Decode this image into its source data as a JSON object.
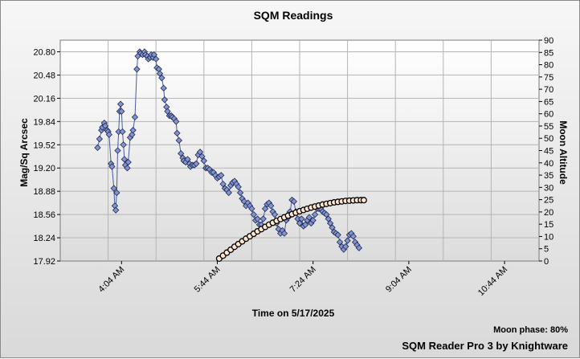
{
  "footer": {
    "moon_phase": "Moon phase: 80%",
    "brand": "SQM Reader Pro 3 by Knightware"
  },
  "chart_data": {
    "type": "scatter",
    "title": "SQM Readings",
    "xlabel": "Time on 5/17/2025",
    "ylabel": "Mag/Sq Arcsec",
    "y2label": "Moon Altitude",
    "x_tick_labels": [
      "4:04 AM",
      "5:44 AM",
      "7:24 AM",
      "9:04 AM",
      "10:44 AM"
    ],
    "x_tick_values_min": [
      244,
      344,
      444,
      544,
      644
    ],
    "x_range_min": [
      180,
      680
    ],
    "x_grid_step_min": 50,
    "ylim": [
      17.92,
      20.96
    ],
    "y_tick_values": [
      17.92,
      18.24,
      18.56,
      18.88,
      19.2,
      19.52,
      19.84,
      20.16,
      20.48,
      20.8
    ],
    "y_tick_labels": [
      "17.92",
      "18.24",
      "18.56",
      "18.88",
      "19.20",
      "19.52",
      "19.84",
      "20.16",
      "20.48",
      "20.80"
    ],
    "y2lim": [
      0,
      90
    ],
    "y2_tick_values": [
      0,
      5,
      10,
      15,
      20,
      25,
      30,
      35,
      40,
      45,
      50,
      55,
      60,
      65,
      70,
      75,
      80,
      85,
      90
    ],
    "grid": true,
    "colors": {
      "sqm_fill": "#8593cf",
      "sqm_edge": "#1c2a55",
      "sqm_line": "#4a5a9a",
      "moon_fill": "#ffe6cf",
      "moon_edge": "#000000",
      "plot_bg_top": "#ffffff",
      "plot_bg_bottom": "#dcdcdc",
      "grid": "#b4b4b4"
    },
    "series": [
      {
        "name": "SQM",
        "marker": "diamond",
        "points": [
          [
            219,
            19.48
          ],
          [
            221,
            19.6
          ],
          [
            223,
            19.72
          ],
          [
            224,
            19.76
          ],
          [
            226,
            19.82
          ],
          [
            227,
            19.78
          ],
          [
            229,
            19.72
          ],
          [
            230,
            19.7
          ],
          [
            231,
            19.66
          ],
          [
            233,
            19.26
          ],
          [
            234,
            19.22
          ],
          [
            236,
            18.92
          ],
          [
            237,
            18.68
          ],
          [
            238,
            18.62
          ],
          [
            239,
            18.86
          ],
          [
            240,
            19.44
          ],
          [
            241,
            19.7
          ],
          [
            242,
            19.98
          ],
          [
            243,
            20.08
          ],
          [
            244,
            19.98
          ],
          [
            245,
            19.7
          ],
          [
            246,
            19.52
          ],
          [
            247,
            19.32
          ],
          [
            248,
            19.24
          ],
          [
            250,
            19.2
          ],
          [
            251,
            19.28
          ],
          [
            253,
            19.62
          ],
          [
            255,
            19.66
          ],
          [
            256,
            19.72
          ],
          [
            258,
            19.9
          ],
          [
            260,
            20.56
          ],
          [
            261,
            20.74
          ],
          [
            263,
            20.8
          ],
          [
            264,
            20.78
          ],
          [
            266,
            20.76
          ],
          [
            268,
            20.8
          ],
          [
            269,
            20.76
          ],
          [
            271,
            20.74
          ],
          [
            272,
            20.7
          ],
          [
            274,
            20.72
          ],
          [
            275,
            20.76
          ],
          [
            277,
            20.72
          ],
          [
            278,
            20.76
          ],
          [
            280,
            20.7
          ],
          [
            281,
            20.58
          ],
          [
            283,
            20.56
          ],
          [
            284,
            20.5
          ],
          [
            286,
            20.44
          ],
          [
            288,
            20.3
          ],
          [
            289,
            20.14
          ],
          [
            291,
            20.04
          ],
          [
            292,
            19.98
          ],
          [
            294,
            19.92
          ],
          [
            296,
            19.92
          ],
          [
            297,
            19.9
          ],
          [
            299,
            19.88
          ],
          [
            301,
            19.84
          ],
          [
            302,
            19.68
          ],
          [
            304,
            19.58
          ],
          [
            306,
            19.4
          ],
          [
            308,
            19.34
          ],
          [
            309,
            19.3
          ],
          [
            311,
            19.28
          ],
          [
            313,
            19.32
          ],
          [
            315,
            19.26
          ],
          [
            316,
            19.22
          ],
          [
            318,
            19.24
          ],
          [
            320,
            19.24
          ],
          [
            322,
            19.26
          ],
          [
            324,
            19.38
          ],
          [
            326,
            19.42
          ],
          [
            328,
            19.36
          ],
          [
            330,
            19.3
          ],
          [
            332,
            19.2
          ],
          [
            334,
            19.2
          ],
          [
            336,
            19.18
          ],
          [
            338,
            19.14
          ],
          [
            340,
            19.14
          ],
          [
            342,
            19.1
          ],
          [
            344,
            19.06
          ],
          [
            346,
            19.08
          ],
          [
            348,
            19.1
          ],
          [
            350,
            18.98
          ],
          [
            352,
            18.92
          ],
          [
            354,
            18.9
          ],
          [
            356,
            18.86
          ],
          [
            358,
            18.96
          ],
          [
            360,
            19.0
          ],
          [
            362,
            19.02
          ],
          [
            364,
            18.98
          ],
          [
            366,
            18.94
          ],
          [
            368,
            18.86
          ],
          [
            370,
            18.78
          ],
          [
            372,
            18.74
          ],
          [
            374,
            18.68
          ],
          [
            376,
            18.72
          ],
          [
            378,
            18.68
          ],
          [
            380,
            18.64
          ],
          [
            382,
            18.56
          ],
          [
            384,
            18.48
          ],
          [
            386,
            18.5
          ],
          [
            388,
            18.42
          ],
          [
            390,
            18.42
          ],
          [
            392,
            18.5
          ],
          [
            394,
            18.64
          ],
          [
            396,
            18.7
          ],
          [
            398,
            18.72
          ],
          [
            400,
            18.68
          ],
          [
            402,
            18.6
          ],
          [
            404,
            18.56
          ],
          [
            406,
            18.44
          ],
          [
            408,
            18.36
          ],
          [
            410,
            18.3
          ],
          [
            412,
            18.34
          ],
          [
            414,
            18.3
          ],
          [
            416,
            18.48
          ],
          [
            418,
            18.52
          ],
          [
            420,
            18.6
          ],
          [
            422,
            18.76
          ],
          [
            424,
            18.74
          ],
          [
            426,
            18.6
          ],
          [
            428,
            18.5
          ],
          [
            430,
            18.44
          ],
          [
            432,
            18.5
          ],
          [
            434,
            18.4
          ],
          [
            436,
            18.42
          ],
          [
            438,
            18.48
          ],
          [
            440,
            18.52
          ],
          [
            442,
            18.44
          ],
          [
            444,
            18.48
          ],
          [
            446,
            18.56
          ],
          [
            448,
            18.64
          ],
          [
            450,
            18.64
          ],
          [
            452,
            18.64
          ],
          [
            454,
            18.6
          ],
          [
            456,
            18.58
          ],
          [
            458,
            18.56
          ],
          [
            460,
            18.5
          ],
          [
            462,
            18.44
          ],
          [
            464,
            18.38
          ],
          [
            466,
            18.32
          ],
          [
            468,
            18.3
          ],
          [
            470,
            18.28
          ],
          [
            472,
            18.18
          ],
          [
            474,
            18.12
          ],
          [
            476,
            18.08
          ],
          [
            478,
            18.12
          ],
          [
            480,
            18.2
          ],
          [
            482,
            18.28
          ],
          [
            484,
            18.3
          ],
          [
            486,
            18.26
          ],
          [
            488,
            18.18
          ],
          [
            490,
            18.14
          ],
          [
            492,
            18.1
          ]
        ]
      },
      {
        "name": "Moon Altitude",
        "marker": "circle",
        "axis": "right",
        "points": [
          [
            346,
            1
          ],
          [
            350,
            2.2
          ],
          [
            354,
            3.4
          ],
          [
            358,
            4.6
          ],
          [
            362,
            5.8
          ],
          [
            366,
            6.9
          ],
          [
            370,
            8.0
          ],
          [
            374,
            9.1
          ],
          [
            378,
            10.1
          ],
          [
            382,
            11.1
          ],
          [
            386,
            12.1
          ],
          [
            390,
            13.0
          ],
          [
            394,
            13.9
          ],
          [
            398,
            14.8
          ],
          [
            402,
            15.6
          ],
          [
            406,
            16.4
          ],
          [
            410,
            17.1
          ],
          [
            414,
            17.8
          ],
          [
            418,
            18.5
          ],
          [
            422,
            19.1
          ],
          [
            426,
            19.7
          ],
          [
            430,
            20.3
          ],
          [
            434,
            20.8
          ],
          [
            438,
            21.3
          ],
          [
            442,
            21.8
          ],
          [
            446,
            22.2
          ],
          [
            450,
            22.6
          ],
          [
            454,
            23.0
          ],
          [
            458,
            23.3
          ],
          [
            462,
            23.6
          ],
          [
            466,
            23.9
          ],
          [
            470,
            24.1
          ],
          [
            474,
            24.3
          ],
          [
            478,
            24.5
          ],
          [
            482,
            24.6
          ],
          [
            486,
            24.7
          ],
          [
            490,
            24.8
          ],
          [
            494,
            24.8
          ],
          [
            497,
            24.8
          ]
        ]
      }
    ]
  }
}
